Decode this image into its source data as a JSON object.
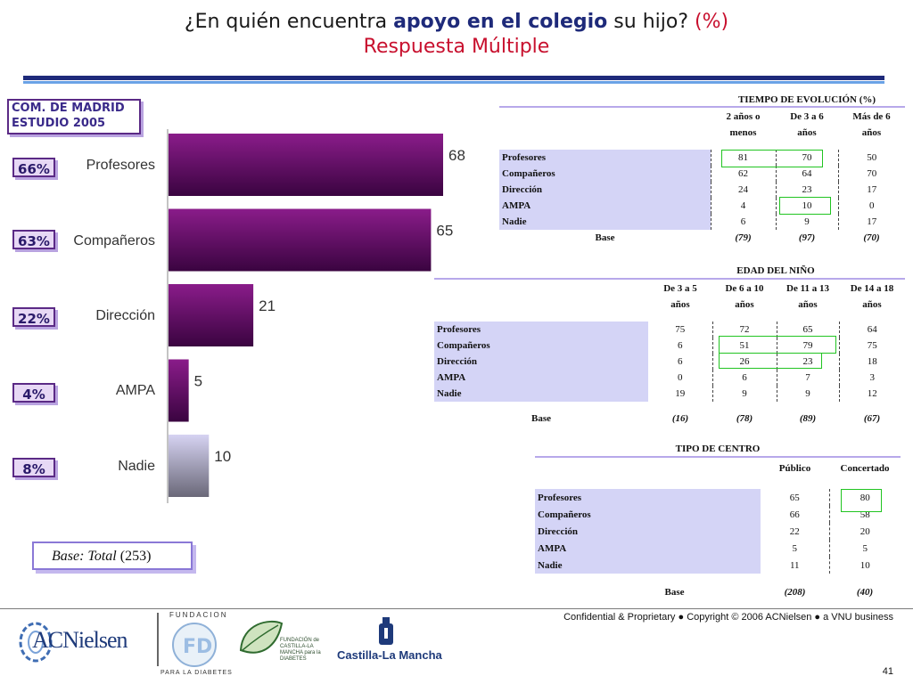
{
  "title": {
    "part1": "¿En quién encuentra",
    "emphasis": "apoyo en el colegio",
    "part2": "su hijo?",
    "percent": "(%)",
    "subtitle": "Respuesta Múltiple"
  },
  "study": {
    "line1": "COM.  DE  MADRID",
    "line2": "ESTUDIO 2005"
  },
  "chart_data": {
    "type": "bar",
    "orientation": "horizontal",
    "categories": [
      "Profesores",
      "Compañeros",
      "Dirección",
      "AMPA",
      "Nadie"
    ],
    "values": [
      68,
      65,
      21,
      5,
      10
    ],
    "badges": [
      "66%",
      "63%",
      "22%",
      "4%",
      "8%"
    ],
    "colors": [
      "#5e0a5e",
      "#5e0a5e",
      "#5e0a5e",
      "#5e0a5e",
      "#b9b6e2"
    ]
  },
  "base_label": {
    "word": "Base: Total",
    "value": "(253)"
  },
  "tables": {
    "evolucion": {
      "title": "TIEMPO DE EVOLUCIÓN (%)",
      "headers": [
        [
          "2 años o",
          "menos"
        ],
        [
          "De 3 a 6",
          "años"
        ],
        [
          "Más de 6",
          "años"
        ]
      ],
      "rows": [
        {
          "label": "Profesores",
          "values": [
            "81",
            "70",
            "50"
          ]
        },
        {
          "label": "Compañeros",
          "values": [
            "62",
            "64",
            "70"
          ]
        },
        {
          "label": "Dirección",
          "values": [
            "24",
            "23",
            "17"
          ]
        },
        {
          "label": "AMPA",
          "values": [
            "4",
            "10",
            "0"
          ]
        },
        {
          "label": "Nadie",
          "values": [
            "6",
            "9",
            "17"
          ]
        }
      ],
      "base_label": "Base",
      "base": [
        "(79)",
        "(97)",
        "(70)"
      ]
    },
    "edad": {
      "title": "EDAD DEL NIÑO",
      "headers": [
        [
          "De 3 a 5",
          "años"
        ],
        [
          "De 6 a 10",
          "años"
        ],
        [
          "De 11 a 13",
          "años"
        ],
        [
          "De 14 a 18",
          "años"
        ]
      ],
      "rows": [
        {
          "label": "Profesores",
          "values": [
            "75",
            "72",
            "65",
            "64"
          ]
        },
        {
          "label": "Compañeros",
          "values": [
            "6",
            "51",
            "79",
            "75"
          ]
        },
        {
          "label": "Dirección",
          "values": [
            "6",
            "26",
            "23",
            "18"
          ]
        },
        {
          "label": "AMPA",
          "values": [
            "0",
            "6",
            "7",
            "3"
          ]
        },
        {
          "label": "Nadie",
          "values": [
            "19",
            "9",
            "9",
            "12"
          ]
        }
      ],
      "base_label": "Base",
      "base": [
        "(16)",
        "(78)",
        "(89)",
        "(67)"
      ]
    },
    "centro": {
      "title": "TIPO DE CENTRO",
      "headers": [
        "Público",
        "Concertado"
      ],
      "rows": [
        {
          "label": "Profesores",
          "values": [
            "65",
            "80"
          ]
        },
        {
          "label": "Compañeros",
          "values": [
            "66",
            "58"
          ]
        },
        {
          "label": "Dirección",
          "values": [
            "22",
            "20"
          ]
        },
        {
          "label": "AMPA",
          "values": [
            "5",
            "5"
          ]
        },
        {
          "label": "Nadie",
          "values": [
            "11",
            "10"
          ]
        }
      ],
      "base_label": "Base",
      "base": [
        "(208)",
        "(40)"
      ]
    }
  },
  "footer": {
    "confidential": "Confidential & Proprietary ● Copyright © 2006 ACNielsen ● a VNU business",
    "page": "41",
    "logo_acnielsen": "ACNielsen",
    "logo_fundacion_top": "FUNDACION",
    "logo_fundacion_bottom": "PARA LA DIABETES",
    "logo_fcm_text": "FUNDACIÓN de CASTILLA-LA MANCHA para la DIABETES",
    "logo_clm": "Castilla-La Mancha"
  }
}
